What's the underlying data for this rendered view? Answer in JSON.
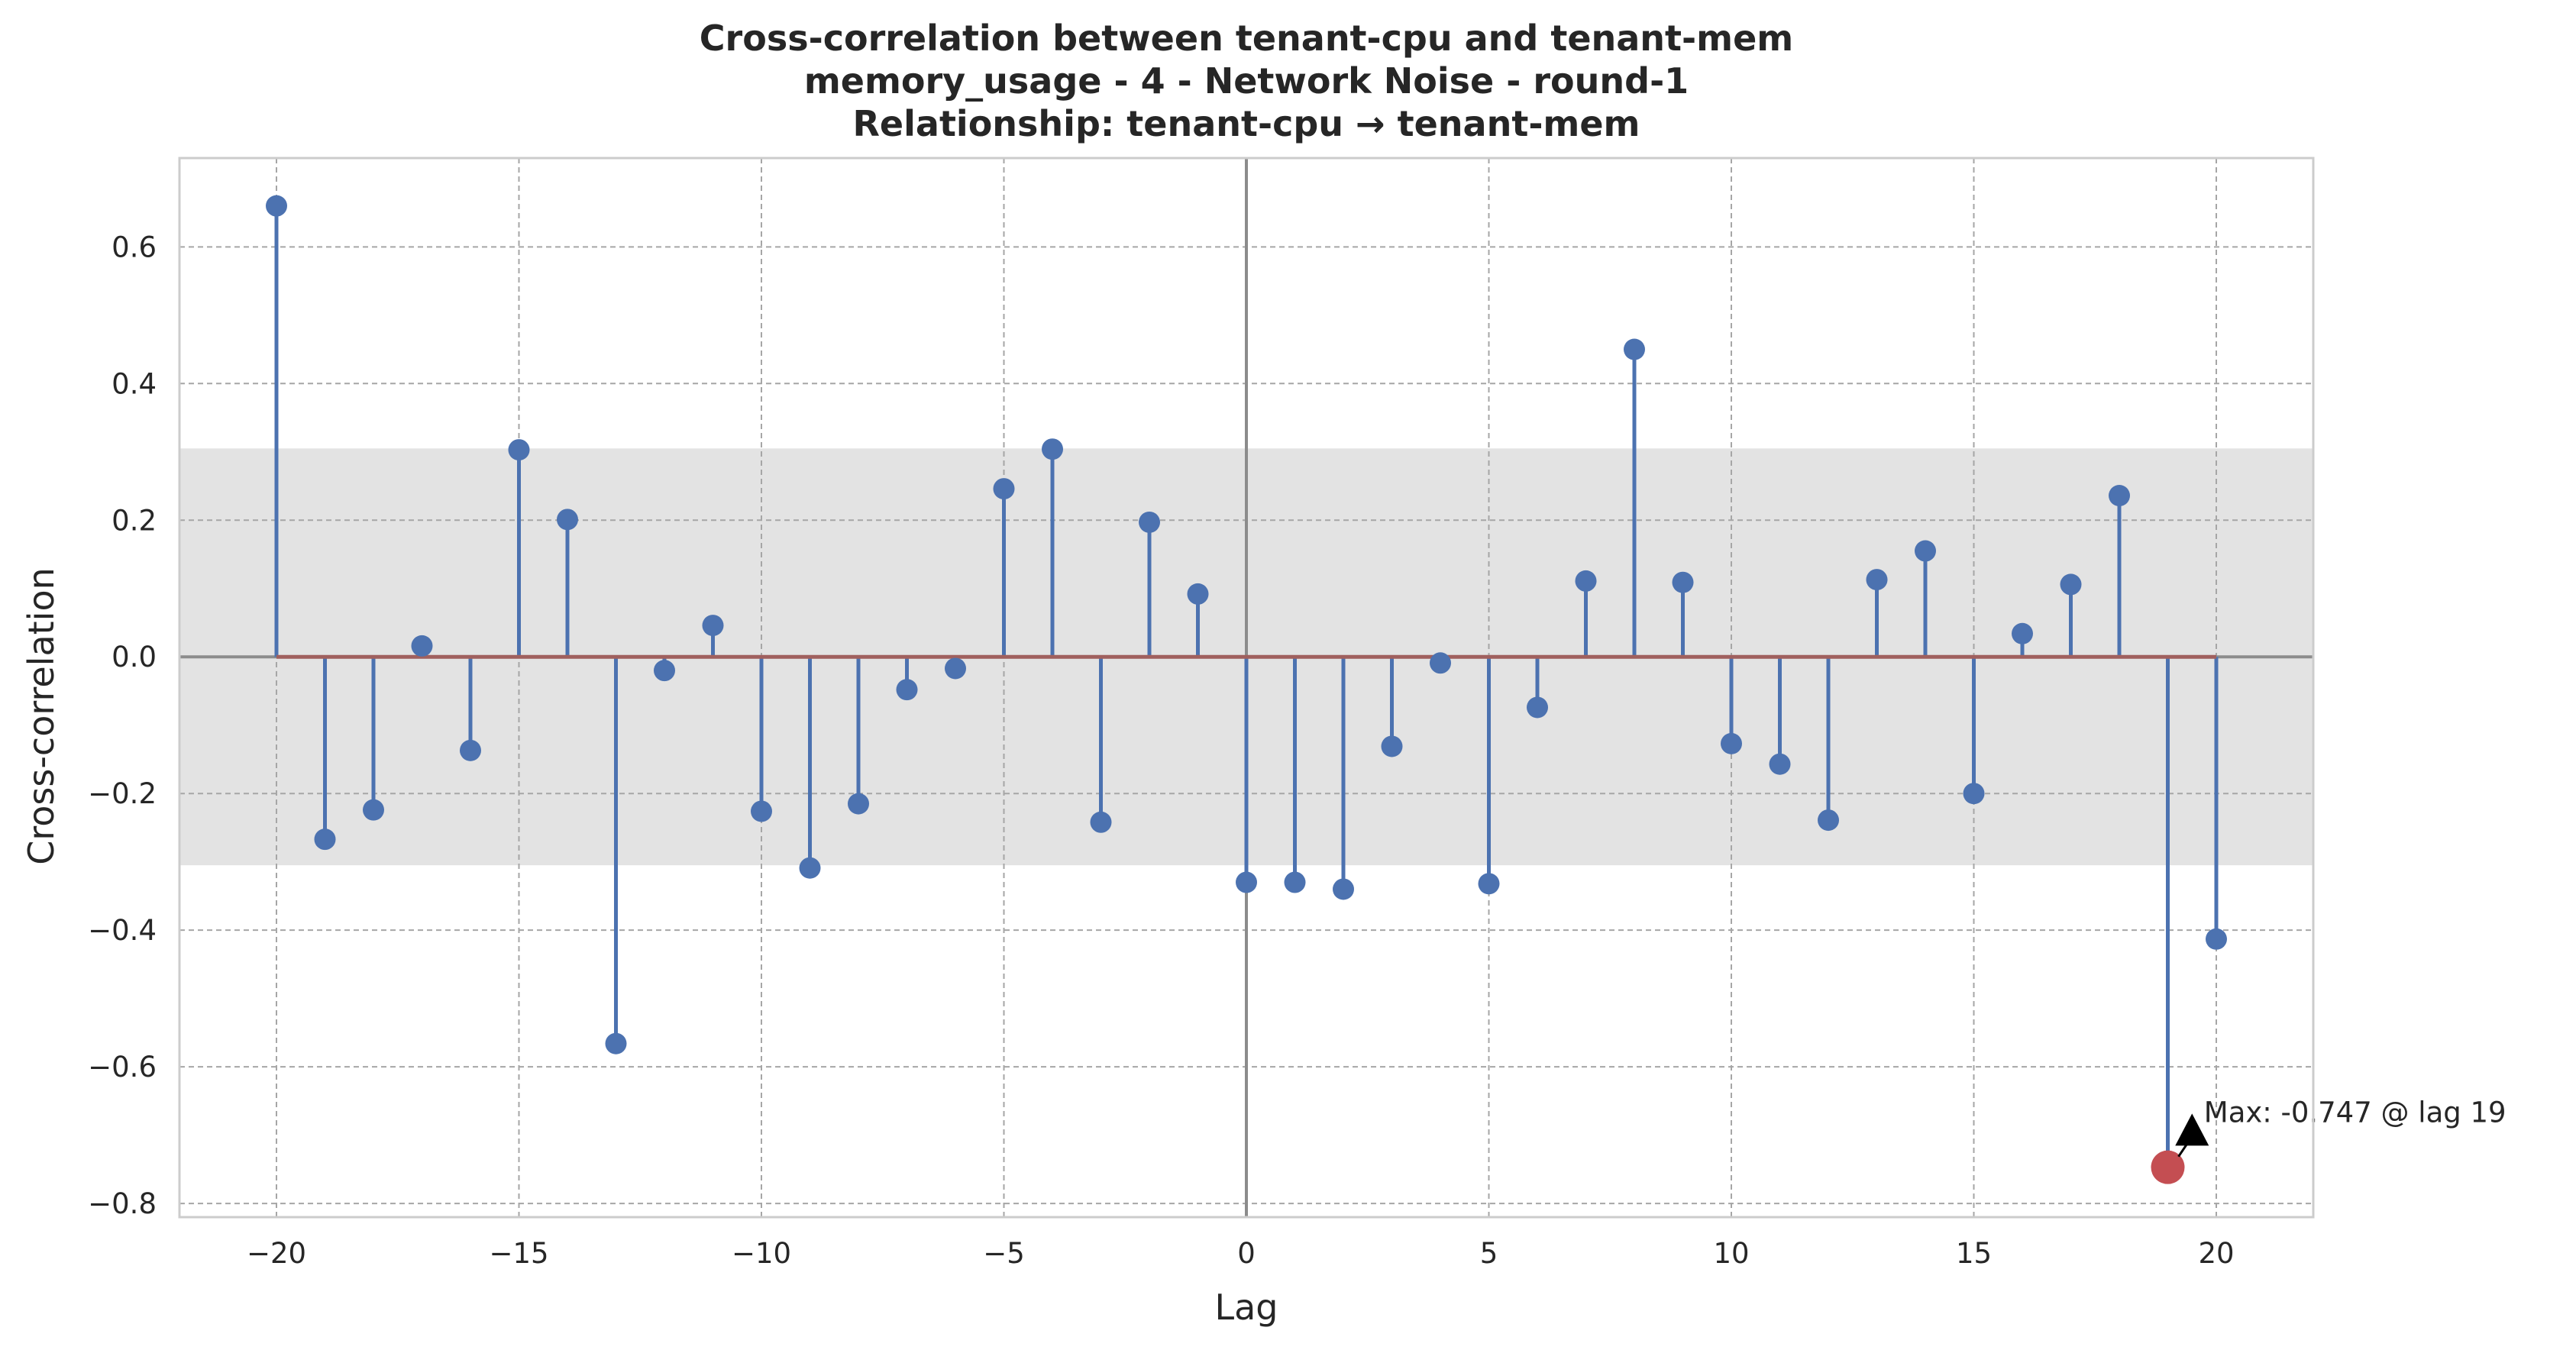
{
  "chart_data": {
    "type": "stem",
    "title_lines": [
      "Cross-correlation between tenant-cpu and tenant-mem",
      "memory_usage - 4 - Network Noise - round-1",
      "Relationship: tenant-cpu → tenant-mem"
    ],
    "xlabel": "Lag",
    "ylabel": "Cross-correlation",
    "xlim": [
      -22,
      22
    ],
    "ylim": [
      -0.82,
      0.73
    ],
    "x_ticks": [
      -20,
      -15,
      -10,
      -5,
      0,
      5,
      10,
      15,
      20
    ],
    "x_tick_labels": [
      "−20",
      "−15",
      "−10",
      "−5",
      "0",
      "5",
      "10",
      "15",
      "20"
    ],
    "y_ticks": [
      0.6,
      0.4,
      0.2,
      0.0,
      -0.2,
      -0.4,
      -0.6,
      -0.8
    ],
    "y_tick_labels": [
      "0.6",
      "0.4",
      "0.2",
      "0.0",
      "−0.2",
      "−0.4",
      "−0.6",
      "−0.8"
    ],
    "grid": true,
    "confidence_band": [
      -0.305,
      0.305
    ],
    "lags": [
      -20,
      -19,
      -18,
      -17,
      -16,
      -15,
      -14,
      -13,
      -12,
      -11,
      -10,
      -9,
      -8,
      -7,
      -6,
      -5,
      -4,
      -3,
      -2,
      -1,
      0,
      1,
      2,
      3,
      4,
      5,
      6,
      7,
      8,
      9,
      10,
      11,
      12,
      13,
      14,
      15,
      16,
      17,
      18,
      19,
      20
    ],
    "values": [
      0.66,
      -0.267,
      -0.224,
      0.016,
      -0.137,
      0.303,
      0.201,
      -0.566,
      -0.02,
      0.046,
      -0.226,
      -0.309,
      -0.215,
      -0.048,
      -0.017,
      0.246,
      0.304,
      -0.242,
      0.197,
      0.092,
      -0.33,
      -0.33,
      -0.34,
      -0.131,
      -0.009,
      -0.332,
      -0.074,
      0.111,
      0.45,
      0.109,
      -0.127,
      -0.157,
      -0.239,
      0.113,
      0.155,
      -0.2,
      0.034,
      0.106,
      0.236,
      -0.747,
      -0.413
    ],
    "max_point": {
      "lag": 19,
      "value": -0.747
    },
    "annotation": "Max: -0.747 @ lag 19",
    "colors": {
      "stem": "#4c72b0",
      "baseline": "#a0605e",
      "max_marker": "#c44e52",
      "band": "#e3e3e3",
      "zero_line": "#8c8c8c",
      "grid": "#a6a6a6",
      "frame": "#cccccc"
    }
  }
}
